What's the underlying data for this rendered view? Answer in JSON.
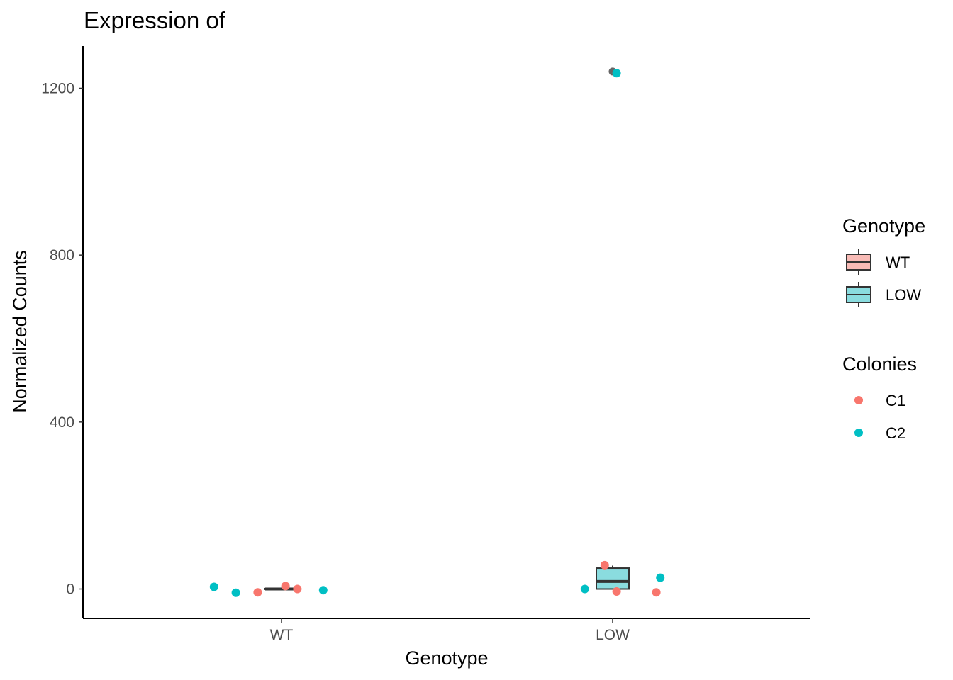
{
  "chart_data": {
    "type": "box",
    "title": "Expression of",
    "xlabel": "Genotype",
    "ylabel": "Normalized Counts",
    "categories": [
      "WT",
      "LOW"
    ],
    "ylim": [
      -70,
      1300
    ],
    "yticks": [
      0,
      400,
      800,
      1200
    ],
    "grid": false,
    "boxes": [
      {
        "category": "WT",
        "q1": 0,
        "median": 0,
        "q3": 1,
        "whisker_low": 0,
        "whisker_high": 1,
        "fill": "#f8bbb6",
        "outliers": []
      },
      {
        "category": "LOW",
        "q1": 0,
        "median": 18,
        "q3": 50,
        "whisker_low": 0,
        "whisker_high": 56,
        "fill": "#8adcdf",
        "outliers": [
          1240
        ]
      }
    ],
    "points": [
      {
        "category": "WT",
        "colony": "C2",
        "jitter": -0.34,
        "y": 5
      },
      {
        "category": "WT",
        "colony": "C2",
        "jitter": -0.23,
        "y": -9
      },
      {
        "category": "WT",
        "colony": "C1",
        "jitter": -0.12,
        "y": -8
      },
      {
        "category": "WT",
        "colony": "C1",
        "jitter": 0.02,
        "y": 7
      },
      {
        "category": "WT",
        "colony": "C1",
        "jitter": 0.08,
        "y": 0
      },
      {
        "category": "WT",
        "colony": "C2",
        "jitter": 0.21,
        "y": -3
      },
      {
        "category": "LOW",
        "colony": "C2",
        "jitter": -0.14,
        "y": 0
      },
      {
        "category": "LOW",
        "colony": "C1",
        "jitter": -0.04,
        "y": 57
      },
      {
        "category": "LOW",
        "colony": "C1",
        "jitter": 0.02,
        "y": -6
      },
      {
        "category": "LOW",
        "colony": "C1",
        "jitter": 0.22,
        "y": -8
      },
      {
        "category": "LOW",
        "colony": "C2",
        "jitter": 0.24,
        "y": 27
      },
      {
        "category": "LOW",
        "colony": "C2",
        "jitter": 0.02,
        "y": 1236
      }
    ],
    "legends": [
      {
        "title": "Genotype",
        "kind": "box",
        "items": [
          {
            "label": "WT",
            "fill": "#f8bbb6"
          },
          {
            "label": "LOW",
            "fill": "#8adcdf"
          }
        ]
      },
      {
        "title": "Colonies",
        "kind": "point",
        "items": [
          {
            "label": "C1",
            "color": "#f8766d"
          },
          {
            "label": "C2",
            "color": "#00bfc4"
          }
        ]
      }
    ],
    "colors": {
      "C1": "#f8766d",
      "C2": "#00bfc4",
      "outline": "#333333",
      "outlier": "#666666"
    }
  }
}
